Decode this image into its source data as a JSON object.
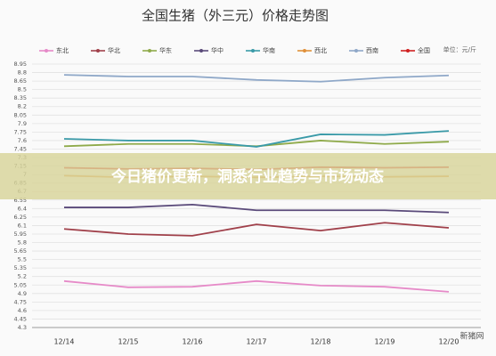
{
  "chart_data": {
    "type": "line",
    "title": "全国生猪（外三元）价格走势图",
    "unit_label": "单位：元/斤",
    "categories": [
      "12/14",
      "12/15",
      "12/16",
      "12/17",
      "12/18",
      "12/19",
      "12/20"
    ],
    "series": [
      {
        "name": "东北",
        "color": "#e68ac8",
        "values": [
          5.12,
          5.01,
          5.02,
          5.12,
          5.04,
          5.02,
          4.93
        ]
      },
      {
        "name": "华北",
        "color": "#a0404a",
        "values": [
          6.04,
          5.95,
          5.92,
          6.12,
          6.01,
          6.15,
          6.06
        ]
      },
      {
        "name": "华东",
        "color": "#8faa4a",
        "values": [
          7.5,
          7.54,
          7.54,
          7.5,
          7.6,
          7.54,
          7.58
        ]
      },
      {
        "name": "华中",
        "color": "#5a4a7a",
        "values": [
          6.42,
          6.42,
          6.47,
          6.37,
          6.37,
          6.37,
          6.33
        ]
      },
      {
        "name": "华南",
        "color": "#3a9aa8",
        "values": [
          7.63,
          7.6,
          7.6,
          7.49,
          7.71,
          7.7,
          7.77
        ]
      },
      {
        "name": "西北",
        "color": "#e0903a",
        "values": [
          6.98,
          6.95,
          6.97,
          6.95,
          6.97,
          6.96,
          6.97
        ]
      },
      {
        "name": "西南",
        "color": "#8fa8c8",
        "values": [
          8.76,
          8.73,
          8.73,
          8.67,
          8.64,
          8.71,
          8.75
        ]
      },
      {
        "name": "全国",
        "color": "#d02020",
        "values": [
          7.12,
          7.1,
          7.11,
          7.09,
          7.13,
          7.12,
          7.13
        ]
      }
    ],
    "ylim": [
      4.3,
      8.95
    ],
    "yticks": [
      8.95,
      8.8,
      8.65,
      8.5,
      8.35,
      8.2,
      8.05,
      7.9,
      7.75,
      7.6,
      7.45,
      7.3,
      7.15,
      7,
      6.85,
      6.7,
      6.55,
      6.4,
      6.25,
      6.1,
      5.95,
      5.8,
      5.65,
      5.5,
      5.35,
      5.2,
      5.05,
      4.9,
      4.75,
      4.6,
      4.45,
      4.3
    ],
    "grid": true
  },
  "banner": "今日猪价更新，洞悉行业趋势与市场动态",
  "watermark": "新猪网"
}
